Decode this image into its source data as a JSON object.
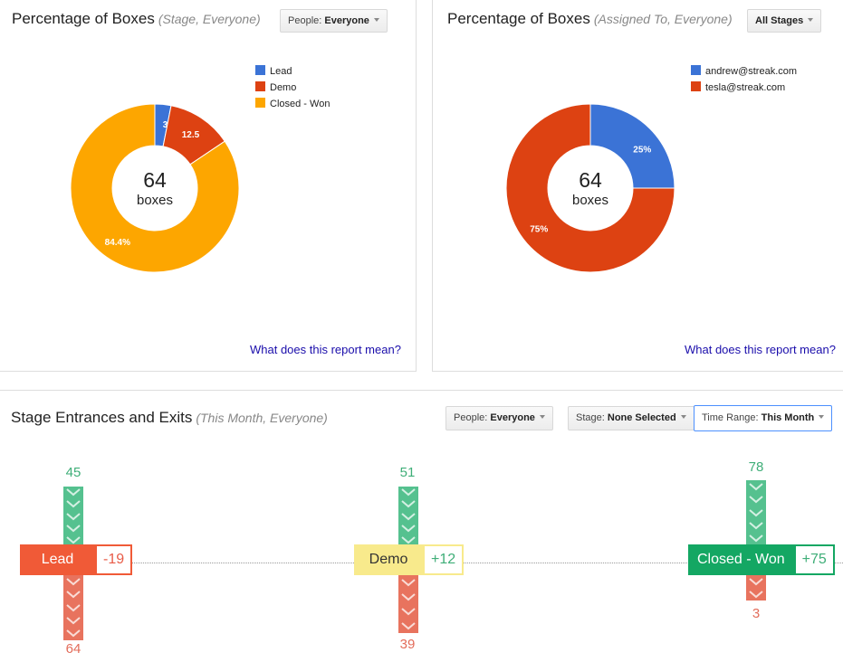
{
  "panel1": {
    "title": "Percentage of Boxes",
    "subtitle": "(Stage, Everyone)",
    "dropdown": {
      "prefix": "People:",
      "value": "Everyone"
    },
    "legend": [
      {
        "label": "Lead",
        "color": "#3b73d6"
      },
      {
        "label": "Demo",
        "color": "#dd4212"
      },
      {
        "label": "Closed - Won",
        "color": "#fda600"
      }
    ],
    "center": {
      "number": "64",
      "label": "boxes"
    },
    "slice_labels": [
      "3",
      "12.5",
      "84.4%"
    ],
    "help_link": "What does this report mean?"
  },
  "panel2": {
    "title": "Percentage of Boxes",
    "subtitle": "(Assigned To, Everyone)",
    "dropdown": {
      "value": "All Stages"
    },
    "legend": [
      {
        "label": "andrew@streak.com",
        "color": "#3b73d6"
      },
      {
        "label": "tesla@streak.com",
        "color": "#dd4212"
      }
    ],
    "center": {
      "number": "64",
      "label": "boxes"
    },
    "slice_labels": [
      "25%",
      "75%"
    ],
    "help_link": "What does this report mean?"
  },
  "panel3": {
    "title": "Stage Entrances and Exits",
    "subtitle": "(This Month, Everyone)",
    "dropdowns": [
      {
        "prefix": "People:",
        "value": "Everyone"
      },
      {
        "prefix": "Stage:",
        "value": "None Selected"
      },
      {
        "prefix": "Time Range:",
        "value": "This Month"
      }
    ],
    "stages": [
      {
        "name": "Lead",
        "delta": "-19",
        "in": "45",
        "out": "64",
        "color": "#f05a37",
        "name_color": "#ffffff",
        "delta_color": "#e85c48"
      },
      {
        "name": "Demo",
        "delta": "+12",
        "in": "51",
        "out": "39",
        "color": "#f8ea8c",
        "name_color": "#333333",
        "delta_color": "#3fae78"
      },
      {
        "name": "Closed - Won",
        "delta": "+75",
        "in": "78",
        "out": "3",
        "color": "#14a763",
        "name_color": "#ffffff",
        "delta_color": "#3fae78"
      }
    ]
  },
  "chart_data": [
    {
      "type": "pie",
      "title": "Percentage of Boxes",
      "subtitle": "(Stage, Everyone)",
      "categories": [
        "Lead",
        "Demo",
        "Closed - Won"
      ],
      "values": [
        3.1,
        12.5,
        84.4
      ],
      "colors": [
        "#3b73d6",
        "#dd4212",
        "#fda600"
      ],
      "legend": "right"
    },
    {
      "type": "pie",
      "title": "Percentage of Boxes",
      "subtitle": "(Assigned To, Everyone)",
      "categories": [
        "andrew@streak.com",
        "tesla@streak.com"
      ],
      "values": [
        25,
        75
      ],
      "colors": [
        "#3b73d6",
        "#dd4212"
      ],
      "legend": "right"
    }
  ]
}
